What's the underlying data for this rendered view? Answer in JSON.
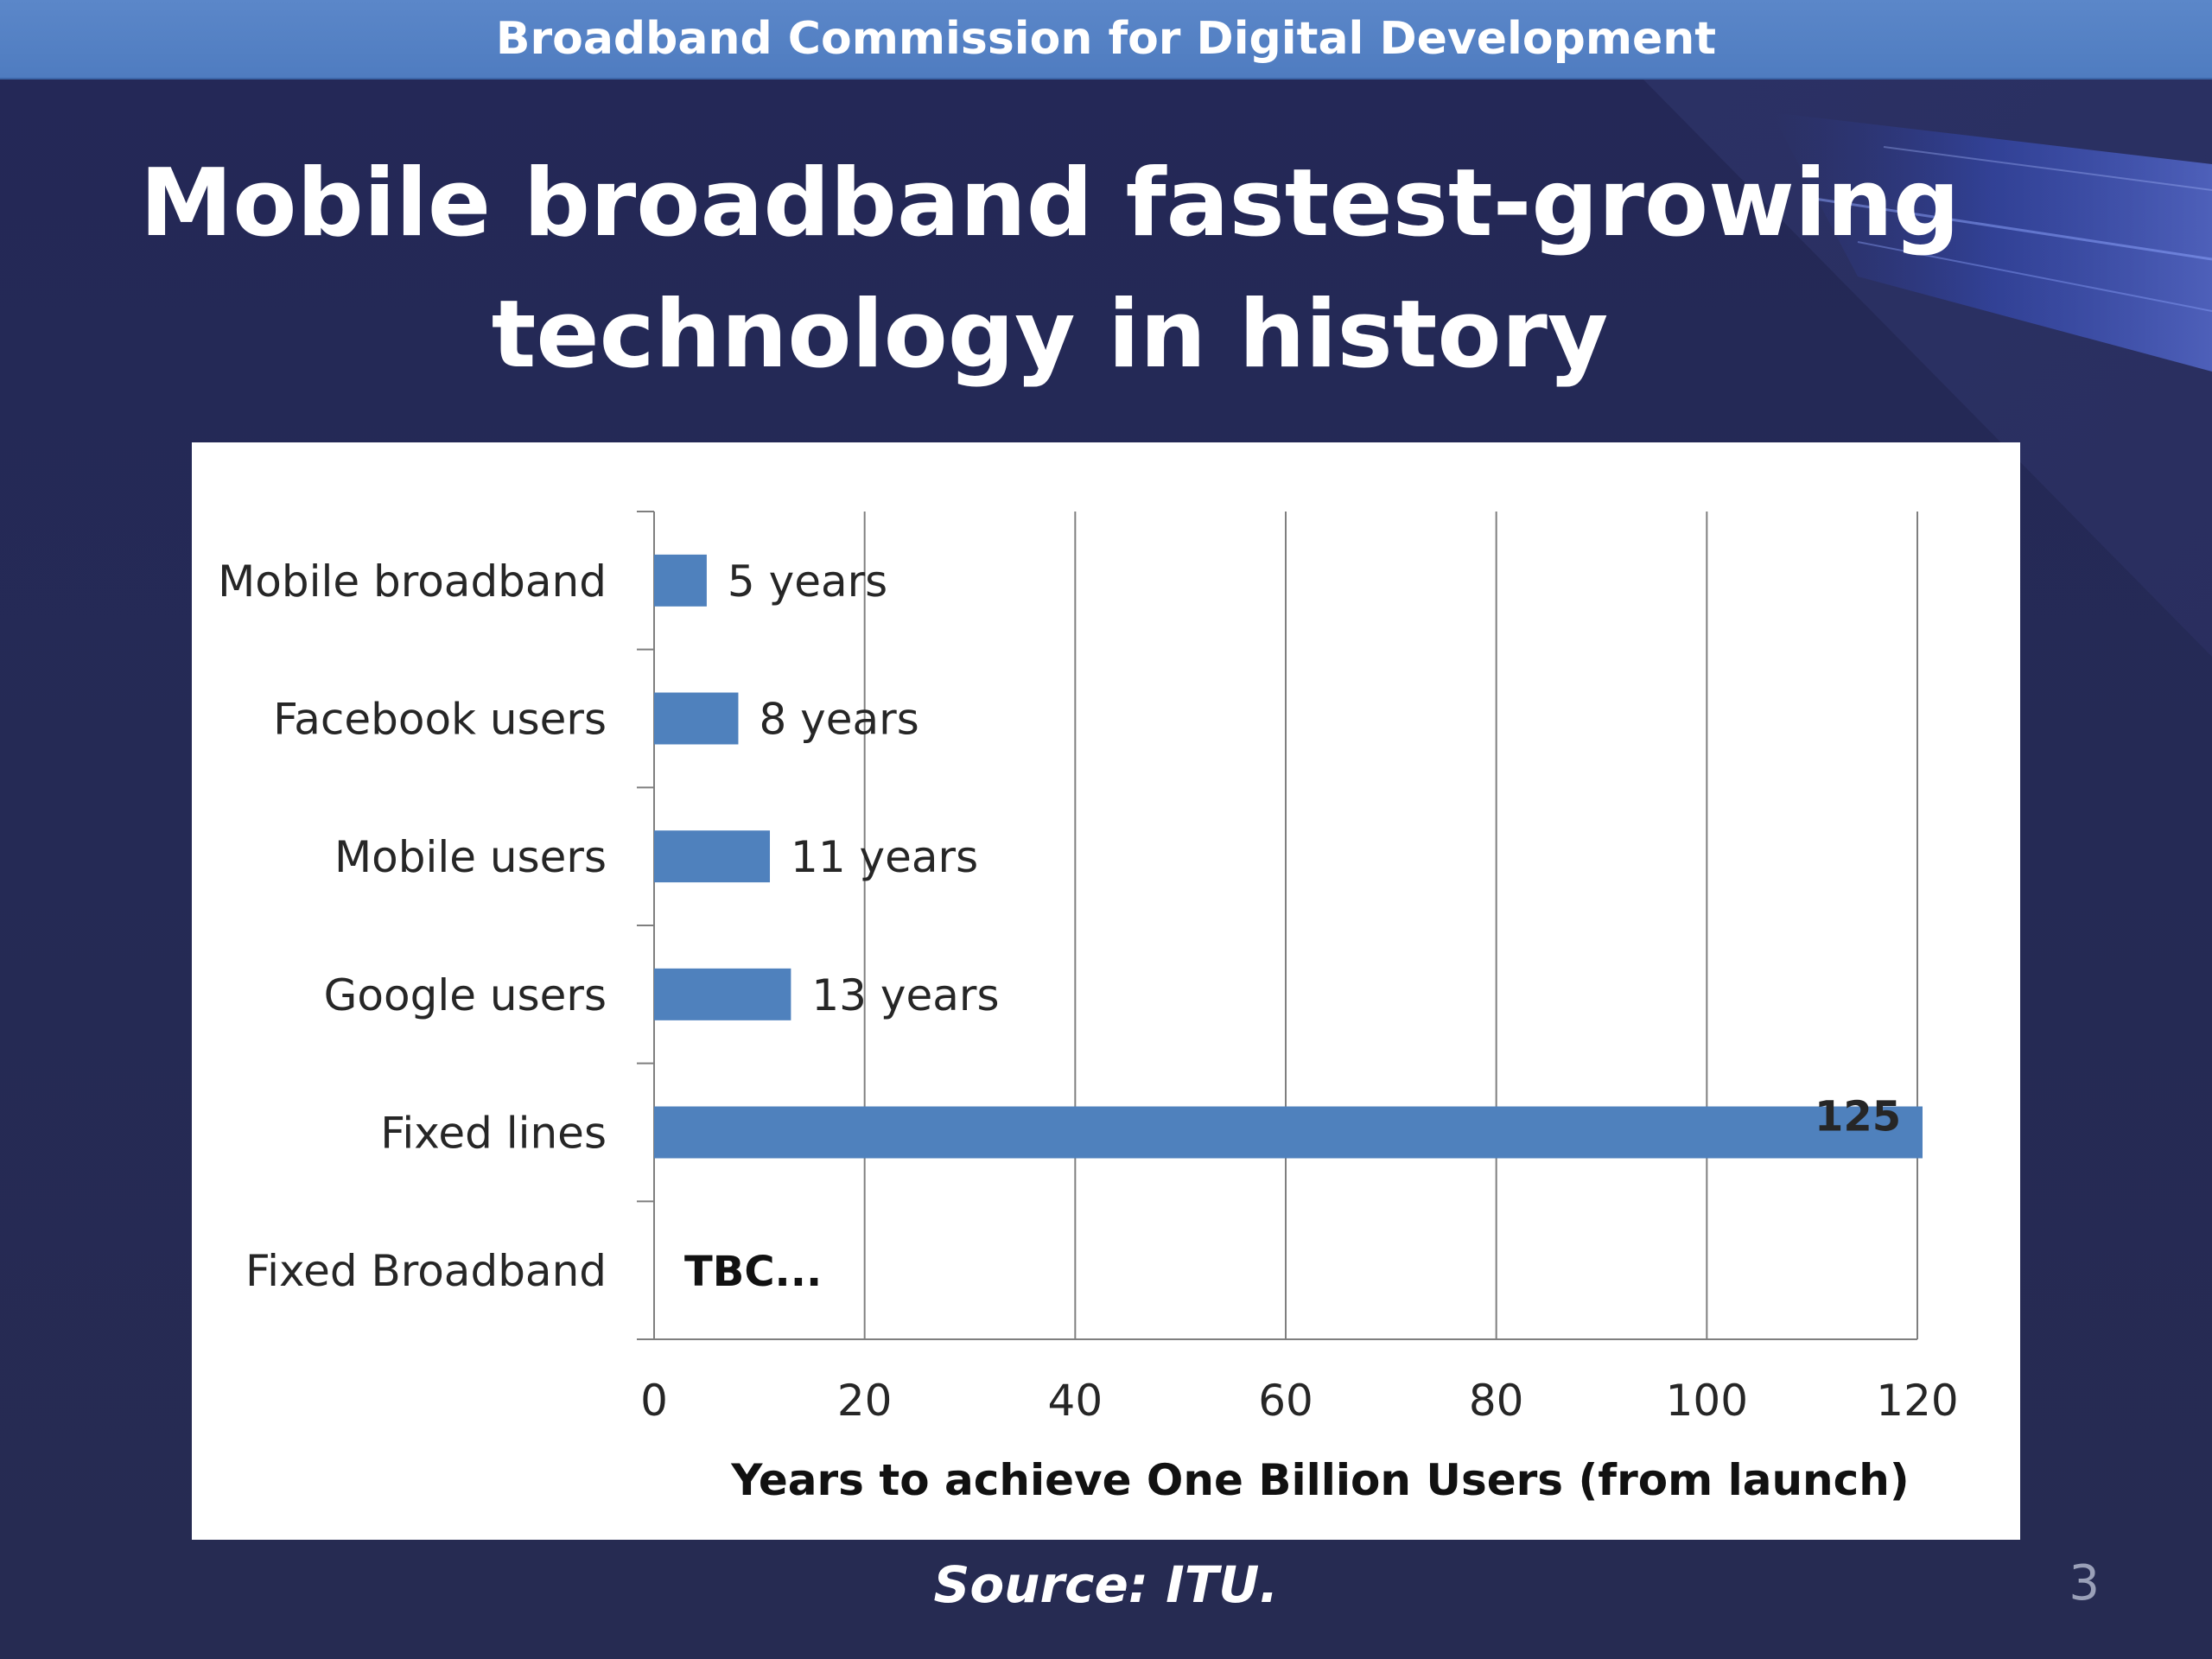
{
  "header": {
    "title": "Broadband Commission for Digital Development"
  },
  "slide": {
    "title_line1": "Mobile broadband fastest-growing",
    "title_line2": "technology in history",
    "source": "Source: ITU.",
    "page_number": "3"
  },
  "colors": {
    "header_bar": "#4f7cc0",
    "background": "#252a55",
    "bar": "#4f81bd",
    "grid": "#7f7f7f"
  },
  "chart_data": {
    "type": "bar",
    "orientation": "horizontal",
    "categories": [
      "Mobile broadband",
      "Facebook users",
      "Mobile users",
      "Google users",
      "Fixed lines",
      "Fixed Broadband"
    ],
    "values": [
      5,
      8,
      11,
      13,
      125,
      null
    ],
    "data_labels": [
      "5 years",
      "8 years",
      "11 years",
      "13 years",
      "125",
      "TBC..."
    ],
    "xlabel": "Years to achieve One Billion Users (from launch)",
    "ylabel": "",
    "xlim": [
      0,
      120
    ],
    "xticks": [
      0,
      20,
      40,
      60,
      80,
      100,
      120
    ],
    "xtick_labels": [
      "0",
      "20",
      "40",
      "60",
      "80",
      "100",
      "120"
    ],
    "grid": "vertical",
    "legend": "none",
    "clipped_at_axis_max": true
  }
}
